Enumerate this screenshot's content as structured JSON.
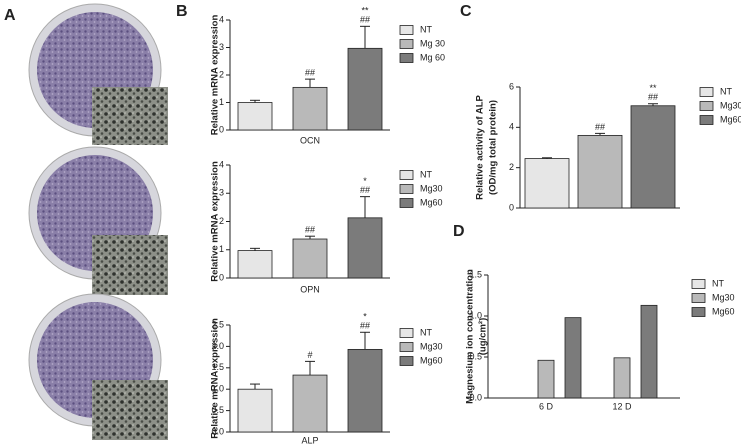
{
  "panel_labels": [
    "A",
    "B",
    "C",
    "D"
  ],
  "chart_data": [
    {
      "type": "bar",
      "ylabel": [
        "Relative mRNA expression"
      ],
      "categories": [
        "OCN"
      ],
      "ylim": [
        0,
        4
      ],
      "yticks": [
        0,
        1,
        2,
        3,
        4
      ],
      "series": [
        {
          "name": "NT",
          "color": "#e6e6e6",
          "values": [
            1.0
          ],
          "errors": [
            0.08
          ],
          "annotations": [
            []
          ]
        },
        {
          "name": "Mg 30",
          "color": "#b9b9b9",
          "values": [
            1.55
          ],
          "errors": [
            0.3
          ],
          "annotations": [
            [
              "##"
            ]
          ]
        },
        {
          "name": "Mg 60",
          "color": "#7b7b7b",
          "values": [
            2.97
          ],
          "errors": [
            0.8
          ],
          "annotations": [
            [
              "**",
              "##"
            ]
          ]
        }
      ]
    },
    {
      "type": "bar",
      "ylabel": [
        "Relative mRNA expression"
      ],
      "categories": [
        "OPN"
      ],
      "ylim": [
        0,
        4
      ],
      "yticks": [
        0,
        1,
        2,
        3,
        4
      ],
      "series": [
        {
          "name": "NT",
          "color": "#e6e6e6",
          "values": [
            0.97
          ],
          "errors": [
            0.08
          ],
          "annotations": [
            []
          ]
        },
        {
          "name": "Mg30",
          "color": "#b9b9b9",
          "values": [
            1.38
          ],
          "errors": [
            0.1
          ],
          "annotations": [
            [
              "##"
            ]
          ]
        },
        {
          "name": "Mg60",
          "color": "#7b7b7b",
          "values": [
            2.13
          ],
          "errors": [
            0.75
          ],
          "annotations": [
            [
              "*",
              "##"
            ]
          ]
        }
      ]
    },
    {
      "type": "bar",
      "ylabel": [
        "Relative mRNA expression"
      ],
      "categories": [
        "ALP"
      ],
      "ylim": [
        0,
        2.5
      ],
      "yticks": [
        {
          "value": 0,
          "label": "0.0"
        },
        0.5,
        {
          "value": 1,
          "label": "1.0"
        },
        1.5,
        {
          "value": 2,
          "label": "2.0"
        },
        2.5
      ],
      "series": [
        {
          "name": "NT",
          "color": "#e6e6e6",
          "values": [
            1.0
          ],
          "errors": [
            0.12
          ],
          "annotations": [
            []
          ]
        },
        {
          "name": "Mg30",
          "color": "#b9b9b9",
          "values": [
            1.33
          ],
          "errors": [
            0.32
          ],
          "annotations": [
            [
              "#"
            ]
          ]
        },
        {
          "name": "Mg60",
          "color": "#7b7b7b",
          "values": [
            1.93
          ],
          "errors": [
            0.4
          ],
          "annotations": [
            [
              "*",
              "##"
            ]
          ]
        }
      ]
    },
    {
      "type": "bar",
      "ylabel": [
        "Relative activity of ALP",
        "(OD/mg total protein)"
      ],
      "categories": [
        null
      ],
      "ylim": [
        0,
        6
      ],
      "yticks": [
        0,
        2,
        4,
        6
      ],
      "series": [
        {
          "name": "NT",
          "color": "#e6e6e6",
          "values": [
            2.45
          ],
          "errors": [
            0.04
          ],
          "annotations": [
            []
          ]
        },
        {
          "name": "Mg30",
          "color": "#b9b9b9",
          "values": [
            3.6
          ],
          "errors": [
            0.1
          ],
          "annotations": [
            [
              "##"
            ]
          ]
        },
        {
          "name": "Mg60",
          "color": "#7b7b7b",
          "values": [
            5.07
          ],
          "errors": [
            0.1
          ],
          "annotations": [
            [
              "**",
              "##"
            ]
          ]
        }
      ]
    },
    {
      "type": "bar",
      "ylabel": [
        "Magnesium ion concentration",
        "(ug/cm²)"
      ],
      "categories": [
        "6 D",
        "12 D"
      ],
      "ylim": [
        0,
        1.5
      ],
      "yticks": [
        {
          "value": 0,
          "label": "0.0"
        },
        0.5,
        {
          "value": 1,
          "label": "1.0"
        },
        1.5
      ],
      "series": [
        {
          "name": "NT",
          "color": "#e6e6e6",
          "values": [
            null,
            null
          ]
        },
        {
          "name": "Mg30",
          "color": "#b9b9b9",
          "values": [
            0.46,
            0.49
          ]
        },
        {
          "name": "Mg60",
          "color": "#7b7b7b",
          "values": [
            0.98,
            1.13
          ]
        }
      ]
    }
  ]
}
